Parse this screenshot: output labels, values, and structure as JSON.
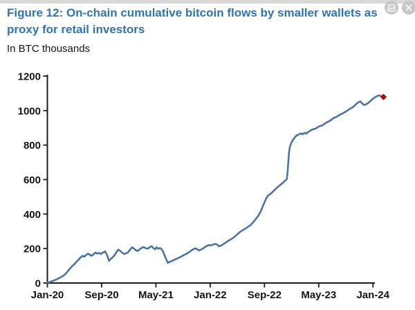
{
  "page": {
    "title": "Figure 12: On-chain cumulative bitcoin flows by smaller wallets as proxy for retail investors",
    "subtitle": "In BTC thousands"
  },
  "toolbar": {
    "copy_image_icon": "image-icon",
    "close_icon": "close-icon"
  },
  "colors": {
    "title_blue": "#2e75b6",
    "line_blue": "#4a73a8",
    "marker_red": "#c00000",
    "axis_black": "#1a1a1a",
    "icon_gray": "#c7c7c7"
  },
  "chart_data": {
    "type": "line",
    "title": "On-chain cumulative bitcoin flows by smaller wallets as proxy for retail investors",
    "ylabel": "In BTC thousands",
    "xlabel": "",
    "ylim": [
      0,
      1200
    ],
    "yticks": [
      0,
      200,
      400,
      600,
      800,
      1000,
      1200
    ],
    "xtick_labels": [
      "Jan-20",
      "Sep-20",
      "May-21",
      "Jan-22",
      "Sep-22",
      "May-23",
      "Jan-24"
    ],
    "xtick_months": [
      0,
      8,
      16,
      24,
      32,
      40,
      48
    ],
    "x_unit": "months since Jan-2020",
    "grid": false,
    "legend": "none",
    "series": [
      {
        "name": "cumulative-btc-flows-smaller-wallets",
        "color": "#4a73a8",
        "points": [
          [
            0,
            2
          ],
          [
            0.4,
            6
          ],
          [
            0.8,
            12
          ],
          [
            1.2,
            18
          ],
          [
            1.6,
            26
          ],
          [
            2,
            34
          ],
          [
            2.4,
            44
          ],
          [
            2.8,
            58
          ],
          [
            3.2,
            78
          ],
          [
            3.6,
            96
          ],
          [
            4,
            110
          ],
          [
            4.3,
            124
          ],
          [
            4.6,
            136
          ],
          [
            4.9,
            148
          ],
          [
            5.2,
            158
          ],
          [
            5.45,
            152
          ],
          [
            5.7,
            162
          ],
          [
            6,
            170
          ],
          [
            6.3,
            163
          ],
          [
            6.55,
            158
          ],
          [
            6.8,
            167
          ],
          [
            7.1,
            177
          ],
          [
            7.35,
            170
          ],
          [
            7.6,
            175
          ],
          [
            7.9,
            168
          ],
          [
            8.2,
            177
          ],
          [
            8.5,
            183
          ],
          [
            8.8,
            163
          ],
          [
            9.1,
            128
          ],
          [
            9.35,
            140
          ],
          [
            9.6,
            148
          ],
          [
            9.9,
            160
          ],
          [
            10.2,
            180
          ],
          [
            10.45,
            194
          ],
          [
            10.7,
            188
          ],
          [
            11,
            176
          ],
          [
            11.3,
            168
          ],
          [
            11.6,
            172
          ],
          [
            11.9,
            178
          ],
          [
            12.2,
            194
          ],
          [
            12.5,
            207
          ],
          [
            12.75,
            200
          ],
          [
            13,
            191
          ],
          [
            13.3,
            186
          ],
          [
            13.6,
            195
          ],
          [
            13.9,
            204
          ],
          [
            14.2,
            209
          ],
          [
            14.5,
            201
          ],
          [
            14.8,
            199
          ],
          [
            15.1,
            208
          ],
          [
            15.35,
            214
          ],
          [
            15.6,
            204
          ],
          [
            15.9,
            195
          ],
          [
            16.1,
            207
          ],
          [
            16.35,
            199
          ],
          [
            16.6,
            203
          ],
          [
            16.85,
            196
          ],
          [
            17.05,
            183
          ],
          [
            17.25,
            162
          ],
          [
            17.5,
            140
          ],
          [
            17.75,
            117
          ],
          [
            18,
            122
          ],
          [
            18.3,
            127
          ],
          [
            18.6,
            132
          ],
          [
            18.9,
            138
          ],
          [
            19.2,
            143
          ],
          [
            19.5,
            149
          ],
          [
            19.8,
            155
          ],
          [
            20.1,
            162
          ],
          [
            20.4,
            167
          ],
          [
            20.7,
            174
          ],
          [
            21,
            182
          ],
          [
            21.3,
            191
          ],
          [
            21.6,
            198
          ],
          [
            21.85,
            201
          ],
          [
            22.1,
            195
          ],
          [
            22.35,
            189
          ],
          [
            22.6,
            193
          ],
          [
            22.9,
            199
          ],
          [
            23.2,
            208
          ],
          [
            23.5,
            215
          ],
          [
            23.8,
            220
          ],
          [
            24.1,
            218
          ],
          [
            24.4,
            222
          ],
          [
            24.7,
            227
          ],
          [
            25,
            224
          ],
          [
            25.3,
            213
          ],
          [
            25.6,
            217
          ],
          [
            25.9,
            224
          ],
          [
            26.2,
            232
          ],
          [
            26.5,
            240
          ],
          [
            26.8,
            248
          ],
          [
            27.1,
            255
          ],
          [
            27.4,
            262
          ],
          [
            27.7,
            272
          ],
          [
            28,
            282
          ],
          [
            28.3,
            293
          ],
          [
            28.6,
            302
          ],
          [
            28.9,
            309
          ],
          [
            29.2,
            316
          ],
          [
            29.5,
            324
          ],
          [
            29.8,
            331
          ],
          [
            30.1,
            342
          ],
          [
            30.4,
            355
          ],
          [
            30.7,
            370
          ],
          [
            31,
            385
          ],
          [
            31.25,
            400
          ],
          [
            31.5,
            420
          ],
          [
            31.7,
            440
          ],
          [
            31.9,
            458
          ],
          [
            32.1,
            476
          ],
          [
            32.3,
            494
          ],
          [
            32.55,
            508
          ],
          [
            32.8,
            515
          ],
          [
            33.1,
            524
          ],
          [
            33.4,
            536
          ],
          [
            33.7,
            548
          ],
          [
            34,
            558
          ],
          [
            34.3,
            568
          ],
          [
            34.6,
            577
          ],
          [
            34.9,
            588
          ],
          [
            35.1,
            596
          ],
          [
            35.3,
            602
          ],
          [
            35.42,
            648
          ],
          [
            35.52,
            700
          ],
          [
            35.62,
            755
          ],
          [
            35.75,
            790
          ],
          [
            35.95,
            812
          ],
          [
            36.2,
            830
          ],
          [
            36.5,
            846
          ],
          [
            36.8,
            857
          ],
          [
            37.1,
            862
          ],
          [
            37.4,
            868
          ],
          [
            37.6,
            862
          ],
          [
            37.9,
            871
          ],
          [
            38.15,
            866
          ],
          [
            38.4,
            874
          ],
          [
            38.7,
            882
          ],
          [
            39,
            889
          ],
          [
            39.3,
            893
          ],
          [
            39.6,
            897
          ],
          [
            39.9,
            905
          ],
          [
            40.2,
            911
          ],
          [
            40.5,
            913
          ],
          [
            40.8,
            922
          ],
          [
            41.1,
            930
          ],
          [
            41.4,
            936
          ],
          [
            41.7,
            942
          ],
          [
            42,
            951
          ],
          [
            42.3,
            959
          ],
          [
            42.6,
            963
          ],
          [
            42.9,
            971
          ],
          [
            43.2,
            978
          ],
          [
            43.5,
            983
          ],
          [
            43.8,
            990
          ],
          [
            44.1,
            997
          ],
          [
            44.4,
            1005
          ],
          [
            44.7,
            1013
          ],
          [
            45,
            1019
          ],
          [
            45.3,
            1029
          ],
          [
            45.6,
            1041
          ],
          [
            45.9,
            1049
          ],
          [
            46.15,
            1053
          ],
          [
            46.4,
            1042
          ],
          [
            46.65,
            1033
          ],
          [
            46.9,
            1035
          ],
          [
            47.2,
            1041
          ],
          [
            47.5,
            1051
          ],
          [
            47.8,
            1062
          ],
          [
            48.1,
            1072
          ],
          [
            48.4,
            1080
          ],
          [
            48.7,
            1086
          ],
          [
            49,
            1088
          ],
          [
            49.25,
            1082
          ],
          [
            49.5,
            1077
          ]
        ]
      }
    ],
    "end_marker": {
      "x": 49.55,
      "y": 1079,
      "shape": "diamond",
      "color": "#c00000"
    }
  }
}
